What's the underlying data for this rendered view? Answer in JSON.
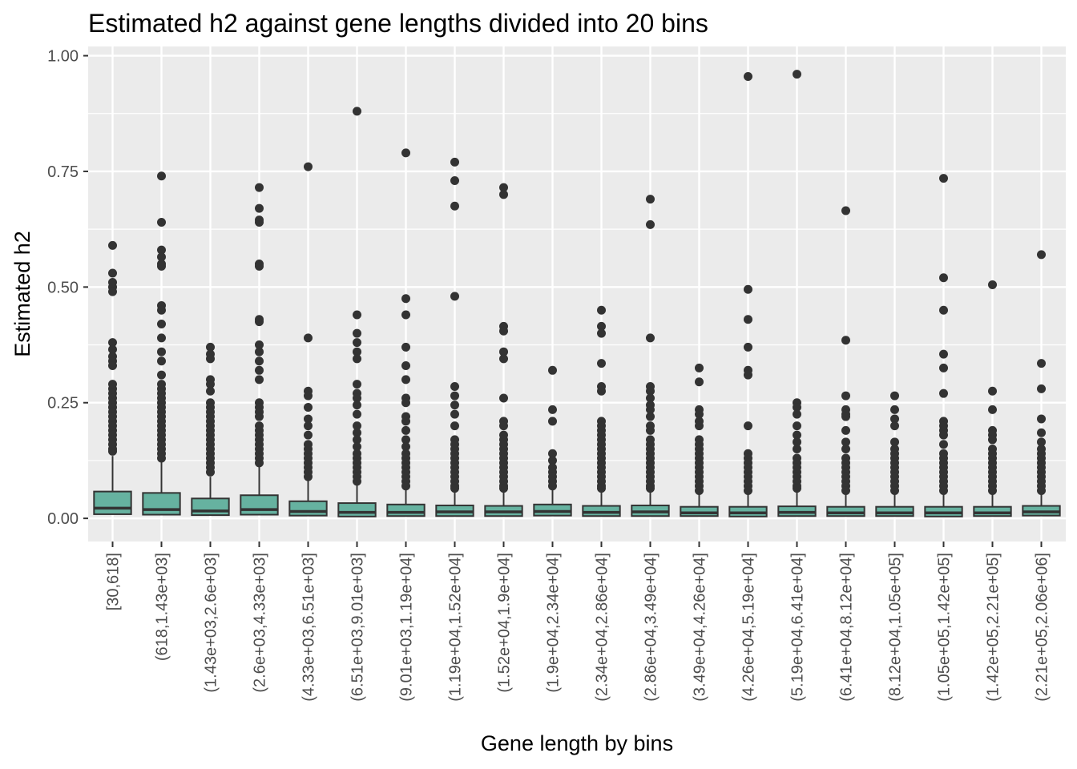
{
  "chart_data": {
    "type": "boxplot",
    "title": "Estimated h2 against gene lengths divided into 20 bins",
    "xlabel": "Gene length by bins",
    "ylabel": "Estimated h2",
    "ylim": [
      -0.05,
      1.02
    ],
    "yticks": [
      0.0,
      0.25,
      0.5,
      0.75,
      1.0
    ],
    "ytick_labels": [
      "0.00",
      "0.25",
      "0.50",
      "0.75",
      "1.00"
    ],
    "grid": true,
    "colors": {
      "panel": "#EBEBEB",
      "grid": "#FFFFFF",
      "box_fill": "#66B2A0",
      "box_line": "#333333",
      "outlier": "#333333",
      "tick_text": "#4D4D4D"
    },
    "categories": [
      "[30,618]",
      "(618,1.43e+03]",
      "(1.43e+03,2.6e+03]",
      "(2.6e+03,4.33e+03]",
      "(4.33e+03,6.51e+03]",
      "(6.51e+03,9.01e+03]",
      "(9.01e+03,1.19e+04]",
      "(1.19e+04,1.52e+04]",
      "(1.52e+04,1.9e+04]",
      "(1.9e+04,2.34e+04]",
      "(2.34e+04,2.86e+04]",
      "(2.86e+04,3.49e+04]",
      "(3.49e+04,4.26e+04]",
      "(4.26e+04,5.19e+04]",
      "(5.19e+04,6.41e+04]",
      "(6.41e+04,8.12e+04]",
      "(8.12e+04,1.05e+05]",
      "(1.05e+05,1.42e+05]",
      "(1.42e+05,2.21e+05]",
      "(2.21e+05,2.06e+06]"
    ],
    "boxes": [
      {
        "q1": 0.009,
        "median": 0.022,
        "q3": 0.058,
        "whisker_high": 0.135,
        "outliers": [
          0.59,
          0.53,
          0.51,
          0.5,
          0.49,
          0.38,
          0.365,
          0.35,
          0.34,
          0.33,
          0.29,
          0.28,
          0.27,
          0.26,
          0.25,
          0.24,
          0.23,
          0.22,
          0.21,
          0.2,
          0.19,
          0.18,
          0.17,
          0.16,
          0.15,
          0.145
        ]
      },
      {
        "q1": 0.008,
        "median": 0.019,
        "q3": 0.055,
        "whisker_high": 0.125,
        "outliers": [
          0.74,
          0.64,
          0.58,
          0.565,
          0.55,
          0.545,
          0.46,
          0.45,
          0.42,
          0.39,
          0.36,
          0.34,
          0.31,
          0.29,
          0.28,
          0.27,
          0.26,
          0.25,
          0.24,
          0.23,
          0.22,
          0.21,
          0.2,
          0.19,
          0.18,
          0.17,
          0.16,
          0.15,
          0.14,
          0.13
        ]
      },
      {
        "q1": 0.007,
        "median": 0.016,
        "q3": 0.043,
        "whisker_high": 0.09,
        "outliers": [
          0.37,
          0.355,
          0.345,
          0.3,
          0.29,
          0.275,
          0.25,
          0.24,
          0.23,
          0.22,
          0.21,
          0.2,
          0.19,
          0.18,
          0.17,
          0.16,
          0.15,
          0.14,
          0.13,
          0.12,
          0.11,
          0.1
        ]
      },
      {
        "q1": 0.008,
        "median": 0.019,
        "q3": 0.05,
        "whisker_high": 0.115,
        "outliers": [
          0.715,
          0.67,
          0.645,
          0.64,
          0.55,
          0.545,
          0.43,
          0.425,
          0.375,
          0.36,
          0.34,
          0.32,
          0.3,
          0.25,
          0.24,
          0.23,
          0.22,
          0.2,
          0.19,
          0.18,
          0.17,
          0.16,
          0.15,
          0.14,
          0.13,
          0.12
        ]
      },
      {
        "q1": 0.006,
        "median": 0.015,
        "q3": 0.037,
        "whisker_high": 0.085,
        "outliers": [
          0.76,
          0.39,
          0.275,
          0.265,
          0.24,
          0.215,
          0.2,
          0.18,
          0.16,
          0.15,
          0.14,
          0.13,
          0.12,
          0.11,
          0.1,
          0.09
        ]
      },
      {
        "q1": 0.004,
        "median": 0.013,
        "q3": 0.033,
        "whisker_high": 0.075,
        "outliers": [
          0.88,
          0.44,
          0.4,
          0.38,
          0.36,
          0.345,
          0.29,
          0.27,
          0.26,
          0.245,
          0.225,
          0.2,
          0.185,
          0.17,
          0.155,
          0.14,
          0.13,
          0.12,
          0.11,
          0.1,
          0.09,
          0.08
        ]
      },
      {
        "q1": 0.005,
        "median": 0.013,
        "q3": 0.03,
        "whisker_high": 0.065,
        "outliers": [
          0.79,
          0.475,
          0.44,
          0.37,
          0.33,
          0.3,
          0.26,
          0.25,
          0.22,
          0.21,
          0.19,
          0.17,
          0.155,
          0.14,
          0.13,
          0.12,
          0.11,
          0.1,
          0.09,
          0.08,
          0.07
        ]
      },
      {
        "q1": 0.005,
        "median": 0.014,
        "q3": 0.028,
        "whisker_high": 0.06,
        "outliers": [
          0.77,
          0.73,
          0.675,
          0.48,
          0.285,
          0.265,
          0.245,
          0.225,
          0.2,
          0.17,
          0.16,
          0.15,
          0.14,
          0.13,
          0.12,
          0.11,
          0.1,
          0.09,
          0.08,
          0.07,
          0.065
        ]
      },
      {
        "q1": 0.005,
        "median": 0.014,
        "q3": 0.027,
        "whisker_high": 0.058,
        "outliers": [
          0.715,
          0.7,
          0.415,
          0.405,
          0.36,
          0.345,
          0.26,
          0.21,
          0.2,
          0.18,
          0.17,
          0.16,
          0.15,
          0.14,
          0.13,
          0.12,
          0.11,
          0.1,
          0.09,
          0.08,
          0.07,
          0.065
        ]
      },
      {
        "q1": 0.006,
        "median": 0.015,
        "q3": 0.03,
        "whisker_high": 0.065,
        "outliers": [
          0.32,
          0.235,
          0.21,
          0.14,
          0.125,
          0.11,
          0.1,
          0.09,
          0.08,
          0.07
        ]
      },
      {
        "q1": 0.005,
        "median": 0.013,
        "q3": 0.027,
        "whisker_high": 0.06,
        "outliers": [
          0.45,
          0.415,
          0.4,
          0.335,
          0.285,
          0.275,
          0.21,
          0.2,
          0.19,
          0.18,
          0.17,
          0.16,
          0.15,
          0.14,
          0.13,
          0.12,
          0.11,
          0.1,
          0.09,
          0.08,
          0.07,
          0.065
        ]
      },
      {
        "q1": 0.005,
        "median": 0.014,
        "q3": 0.028,
        "whisker_high": 0.06,
        "outliers": [
          0.69,
          0.635,
          0.39,
          0.285,
          0.275,
          0.26,
          0.245,
          0.235,
          0.22,
          0.2,
          0.19,
          0.17,
          0.16,
          0.15,
          0.14,
          0.13,
          0.12,
          0.11,
          0.1,
          0.09,
          0.08,
          0.07,
          0.065
        ]
      },
      {
        "q1": 0.005,
        "median": 0.012,
        "q3": 0.025,
        "whisker_high": 0.055,
        "outliers": [
          0.325,
          0.295,
          0.235,
          0.225,
          0.21,
          0.2,
          0.17,
          0.16,
          0.15,
          0.14,
          0.13,
          0.12,
          0.11,
          0.1,
          0.09,
          0.08,
          0.07,
          0.06
        ]
      },
      {
        "q1": 0.004,
        "median": 0.012,
        "q3": 0.025,
        "whisker_high": 0.055,
        "outliers": [
          0.955,
          0.495,
          0.43,
          0.37,
          0.32,
          0.31,
          0.2,
          0.14,
          0.13,
          0.12,
          0.11,
          0.1,
          0.09,
          0.08,
          0.07,
          0.06
        ]
      },
      {
        "q1": 0.005,
        "median": 0.013,
        "q3": 0.026,
        "whisker_high": 0.058,
        "outliers": [
          0.96,
          0.25,
          0.24,
          0.225,
          0.2,
          0.18,
          0.165,
          0.15,
          0.13,
          0.12,
          0.11,
          0.1,
          0.09,
          0.08,
          0.07,
          0.065
        ]
      },
      {
        "q1": 0.005,
        "median": 0.012,
        "q3": 0.025,
        "whisker_high": 0.055,
        "outliers": [
          0.665,
          0.385,
          0.265,
          0.235,
          0.225,
          0.22,
          0.19,
          0.165,
          0.15,
          0.13,
          0.12,
          0.11,
          0.1,
          0.09,
          0.08,
          0.07,
          0.06
        ]
      },
      {
        "q1": 0.005,
        "median": 0.012,
        "q3": 0.025,
        "whisker_high": 0.055,
        "outliers": [
          0.265,
          0.235,
          0.215,
          0.2,
          0.165,
          0.15,
          0.14,
          0.13,
          0.12,
          0.11,
          0.1,
          0.09,
          0.08,
          0.07,
          0.06
        ]
      },
      {
        "q1": 0.004,
        "median": 0.012,
        "q3": 0.025,
        "whisker_high": 0.055,
        "outliers": [
          0.735,
          0.52,
          0.45,
          0.355,
          0.325,
          0.27,
          0.21,
          0.2,
          0.19,
          0.18,
          0.16,
          0.14,
          0.13,
          0.12,
          0.11,
          0.1,
          0.09,
          0.08,
          0.07,
          0.06
        ]
      },
      {
        "q1": 0.005,
        "median": 0.012,
        "q3": 0.025,
        "whisker_high": 0.055,
        "outliers": [
          0.505,
          0.275,
          0.235,
          0.19,
          0.18,
          0.17,
          0.15,
          0.14,
          0.13,
          0.12,
          0.11,
          0.1,
          0.09,
          0.08,
          0.07,
          0.06
        ]
      },
      {
        "q1": 0.006,
        "median": 0.014,
        "q3": 0.027,
        "whisker_high": 0.058,
        "outliers": [
          0.57,
          0.335,
          0.28,
          0.215,
          0.185,
          0.165,
          0.15,
          0.14,
          0.13,
          0.12,
          0.11,
          0.1,
          0.09,
          0.08,
          0.07,
          0.06
        ]
      }
    ]
  }
}
